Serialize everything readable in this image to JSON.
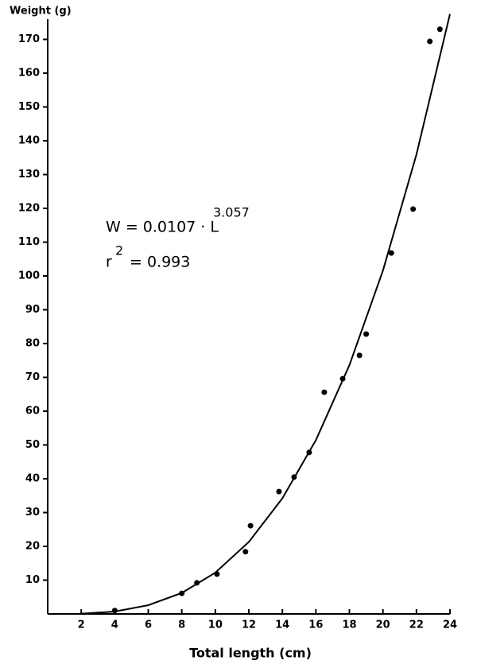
{
  "chart_data": {
    "type": "scatter",
    "title": "Weight (g)",
    "x_label": "Total length (cm)",
    "equation": {
      "base": "W = 0.0107 · L",
      "exponent": "3.057"
    },
    "r_squared": {
      "base": "r",
      "exponent": "2",
      "rest": "= 0.993"
    },
    "xlim": [
      0,
      24
    ],
    "ylim": [
      0,
      176
    ],
    "xticks": [
      2,
      4,
      6,
      8,
      10,
      12,
      14,
      16,
      18,
      20,
      22,
      24
    ],
    "yticks": [
      10,
      20,
      30,
      40,
      50,
      60,
      70,
      80,
      90,
      100,
      110,
      120,
      130,
      140,
      150,
      160,
      170
    ],
    "grid": false,
    "color": "#000000",
    "series": [
      {
        "x": [
          4.0,
          8.0,
          8.9,
          10.1,
          11.8,
          12.1,
          13.8,
          14.7,
          15.6,
          16.5,
          17.6,
          18.6,
          19.0,
          20.5,
          21.8,
          22.8,
          23.4
        ],
        "values": [
          1,
          6.1,
          9.2,
          11.8,
          18.4,
          26.1,
          36.2,
          40.5,
          47.8,
          65.6,
          69.6,
          76.5,
          82.8,
          106.8,
          119.8,
          169.4,
          173
        ]
      }
    ],
    "fit": {
      "x": [
        2,
        4,
        6,
        8,
        10,
        12,
        14,
        16,
        18,
        20,
        22,
        24
      ],
      "values": [
        0.1,
        0.7,
        2.6,
        6.2,
        12.2,
        21.3,
        34.2,
        51.4,
        73.6,
        101.6,
        135.9,
        177.5
      ]
    }
  }
}
